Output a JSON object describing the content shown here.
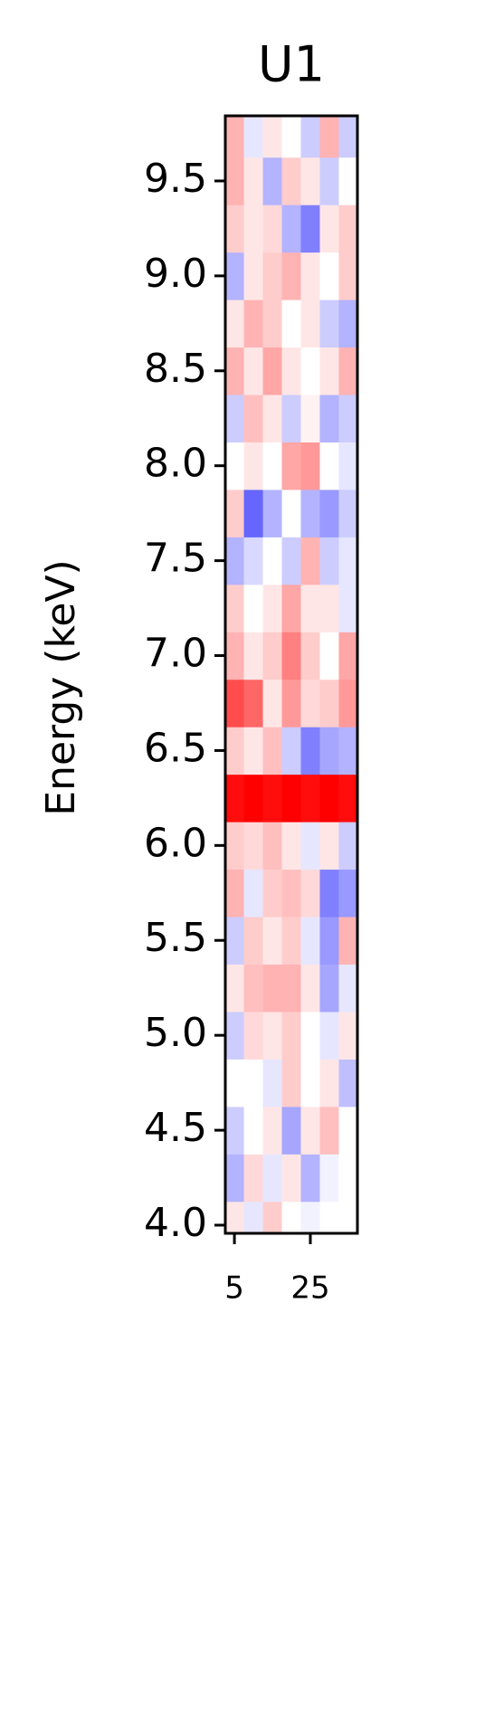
{
  "chart_data": {
    "type": "heatmap",
    "title": "U1",
    "ylabel": "Energy (keV)",
    "x": [
      5,
      10,
      15,
      20,
      25,
      30,
      35
    ],
    "y": [
      4.0,
      4.25,
      4.5,
      4.75,
      5.0,
      5.25,
      5.5,
      5.75,
      6.0,
      6.25,
      6.5,
      6.75,
      7.0,
      7.25,
      7.5,
      7.75,
      8.0,
      8.25,
      8.5,
      8.75,
      9.0,
      9.25,
      9.5,
      9.75
    ],
    "z": [
      [
        0.1,
        -0.1,
        0.2,
        0,
        -0.05,
        0,
        0
      ],
      [
        -0.3,
        0.15,
        -0.1,
        0.1,
        -0.3,
        -0.05,
        0
      ],
      [
        -0.2,
        0,
        0.1,
        -0.35,
        0.1,
        0.25,
        0
      ],
      [
        0,
        0,
        -0.1,
        0.2,
        0,
        0.1,
        -0.25
      ],
      [
        -0.2,
        0.15,
        0.1,
        0.2,
        0,
        -0.1,
        0.1
      ],
      [
        0.1,
        0.25,
        0.3,
        0.3,
        0.1,
        -0.35,
        -0.1
      ],
      [
        -0.2,
        0.2,
        0.1,
        0.2,
        -0.1,
        -0.4,
        0.3
      ],
      [
        0.3,
        -0.1,
        0.2,
        0.25,
        0.15,
        -0.5,
        -0.4
      ],
      [
        0.2,
        0.15,
        0.25,
        0.1,
        -0.1,
        0.1,
        -0.2
      ],
      [
        0.95,
        1,
        0.95,
        1,
        0.95,
        1,
        0.95
      ],
      [
        0.2,
        0.1,
        0.25,
        -0.2,
        -0.5,
        -0.35,
        -0.3
      ],
      [
        0.7,
        0.6,
        0.1,
        0.4,
        0.15,
        0.2,
        0.4
      ],
      [
        0.3,
        0.1,
        0.2,
        0.5,
        0.2,
        0,
        0.35
      ],
      [
        0.2,
        0,
        0.1,
        0.35,
        0.1,
        0.1,
        -0.1
      ],
      [
        -0.3,
        -0.15,
        0,
        -0.2,
        0.3,
        -0.2,
        -0.1
      ],
      [
        0.2,
        -0.6,
        -0.3,
        0,
        -0.3,
        -0.4,
        -0.2
      ],
      [
        0,
        0.1,
        0,
        0.35,
        0.4,
        0,
        -0.1
      ],
      [
        -0.2,
        0.25,
        0.1,
        -0.2,
        0.05,
        -0.3,
        -0.2
      ],
      [
        0.3,
        0.1,
        0.35,
        0.1,
        0,
        0.1,
        0.3
      ],
      [
        0.1,
        0.3,
        0.2,
        0,
        0.1,
        -0.2,
        -0.3
      ],
      [
        -0.3,
        0.1,
        0.2,
        0.3,
        0.1,
        0,
        0.2
      ],
      [
        0.2,
        0.1,
        0.15,
        -0.3,
        -0.5,
        0.1,
        0.2
      ],
      [
        0.3,
        0.1,
        -0.3,
        0.2,
        0.1,
        -0.2,
        0
      ],
      [
        0.3,
        -0.1,
        0.1,
        0,
        -0.2,
        0.3,
        -0.2
      ]
    ],
    "xlim": [
      2.6,
      37.4
    ],
    "ylim": [
      3.957,
      9.843
    ],
    "xticks": [
      5,
      25
    ],
    "yticks": [
      {
        "value": 4,
        "label": "4.0"
      },
      4.5,
      {
        "value": 5,
        "label": "5.0"
      },
      5.5,
      {
        "value": 6,
        "label": "6.0"
      },
      6.5,
      {
        "value": 7,
        "label": "7.0"
      },
      7.5,
      {
        "value": 8,
        "label": "8.0"
      },
      8.5,
      {
        "value": 9,
        "label": "9.0"
      },
      9.5
    ],
    "colormap": "bwr"
  }
}
